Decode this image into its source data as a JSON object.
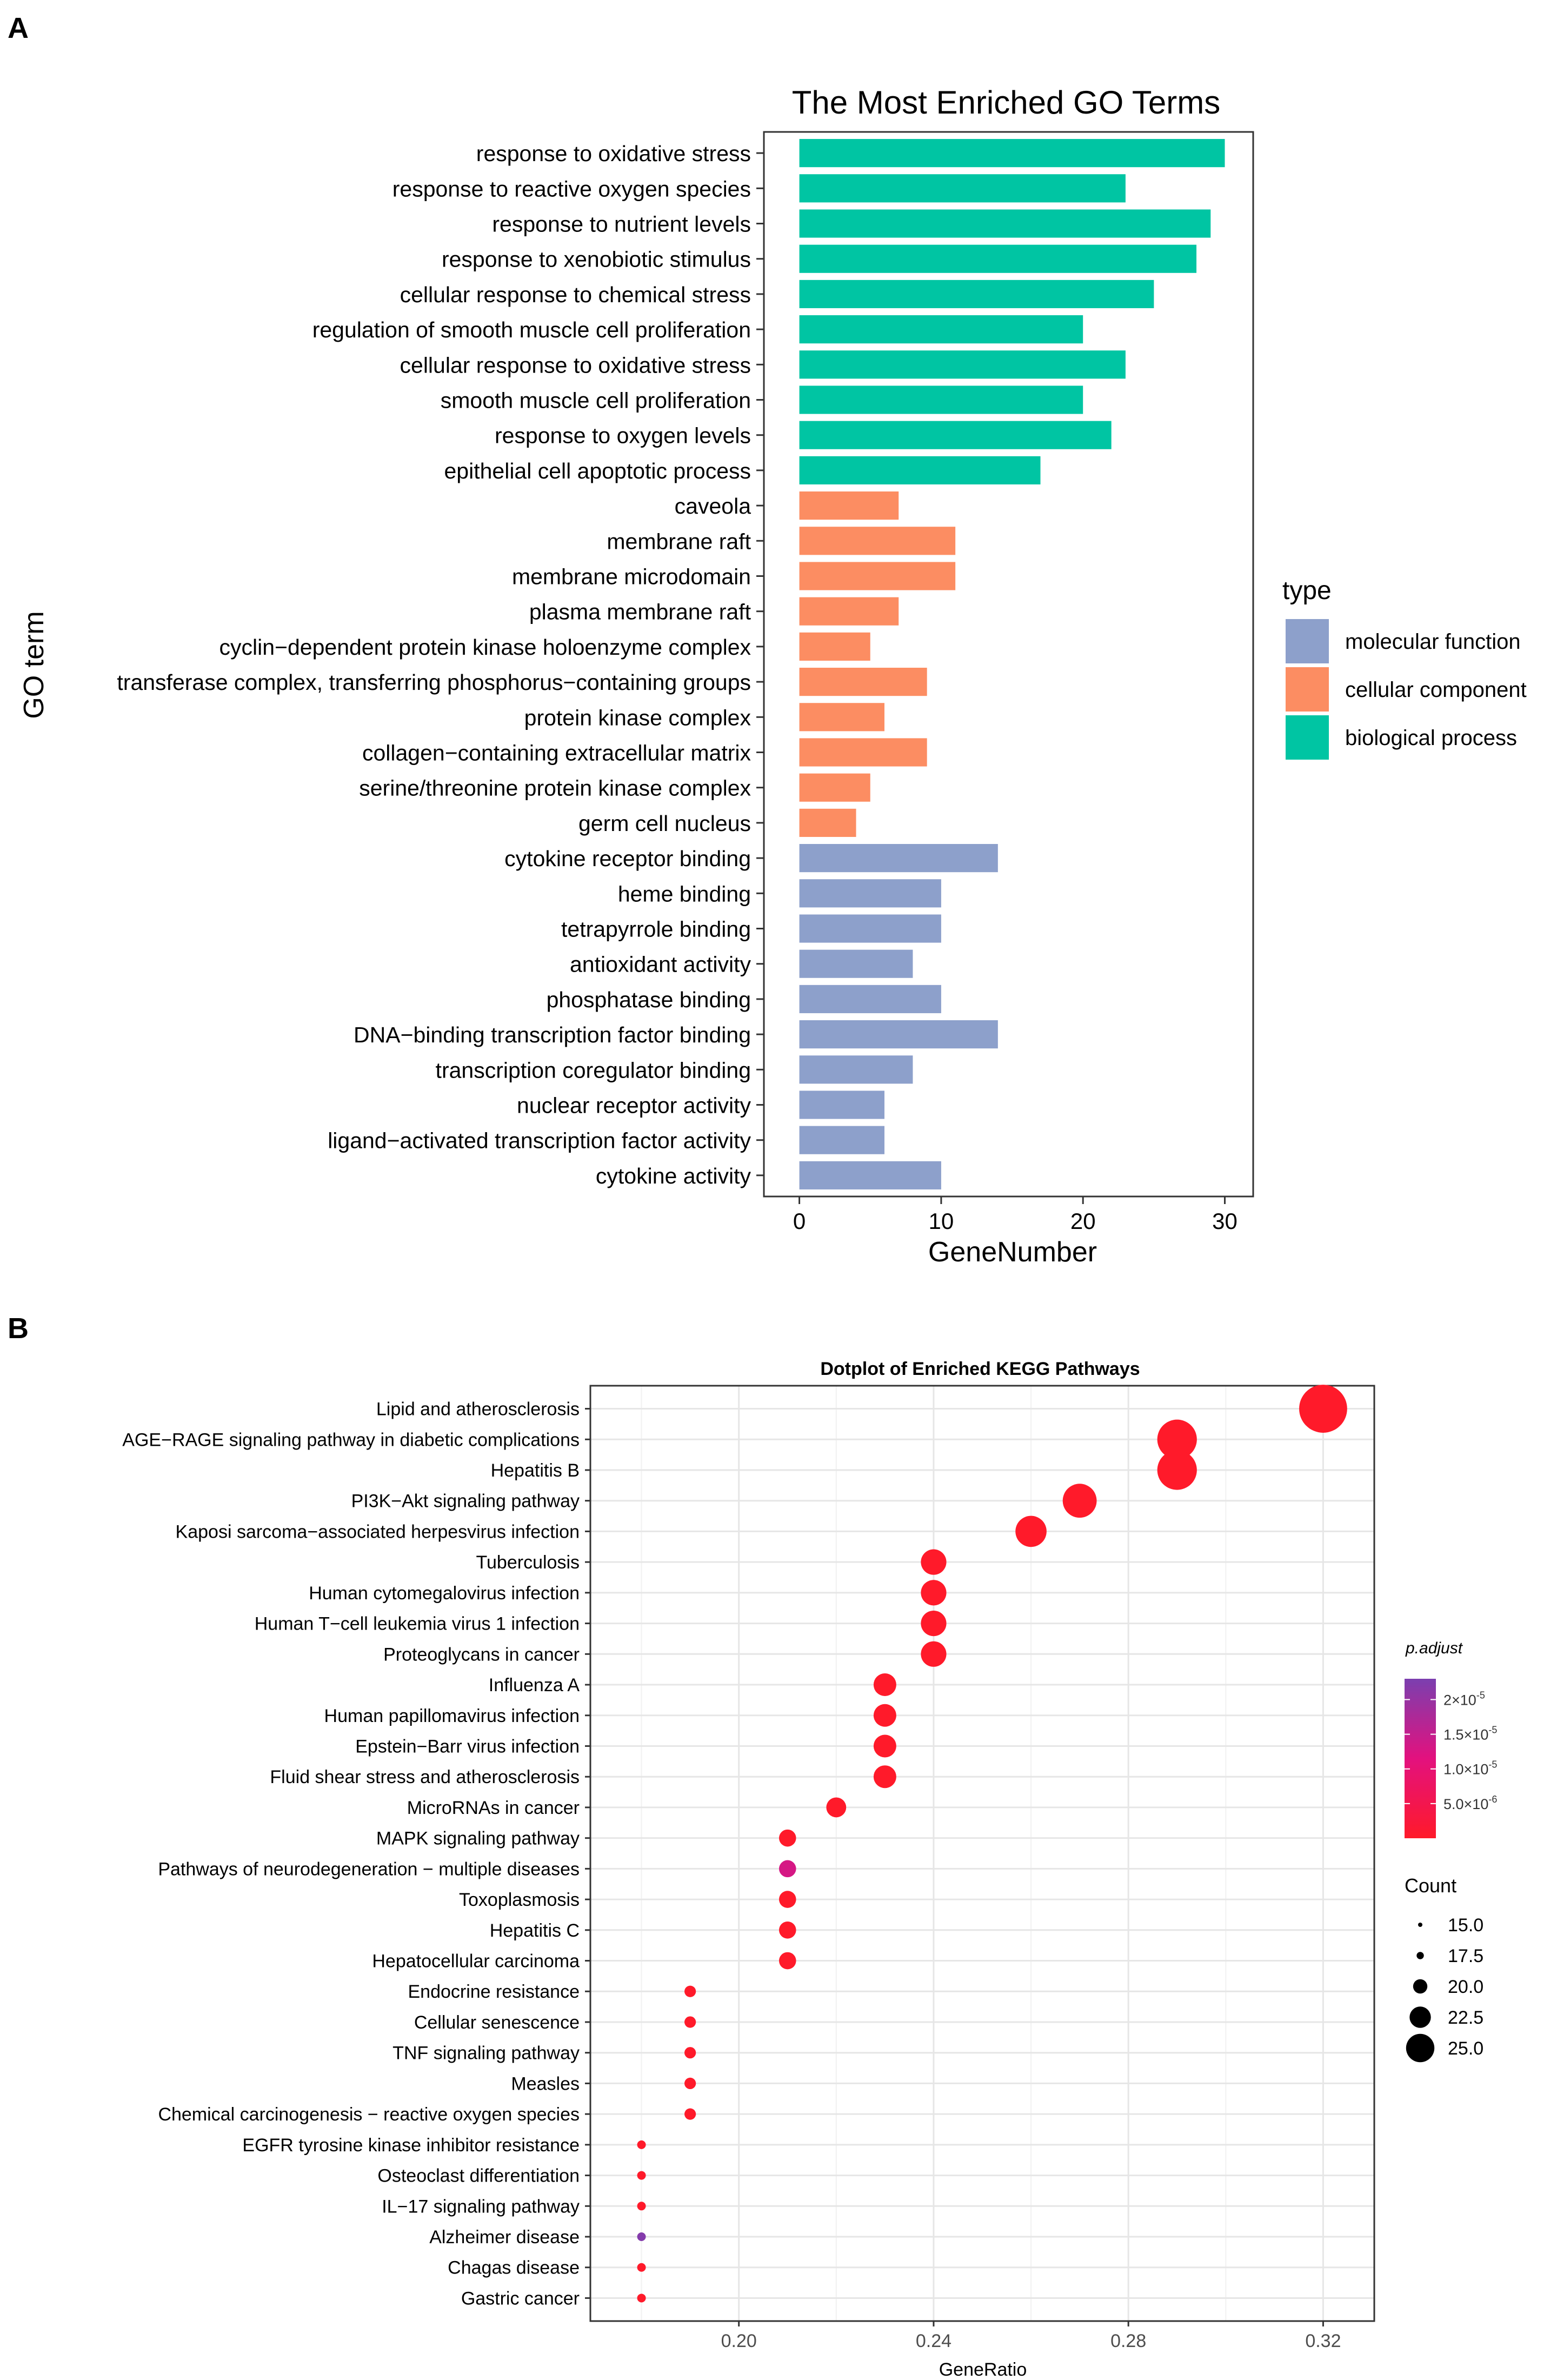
{
  "panel_labels": {
    "a": "A",
    "b": "B"
  },
  "chart_data": [
    {
      "type": "bar",
      "orientation": "horizontal",
      "title": "The Most Enriched GO Terms",
      "xlabel": "GeneNumber",
      "ylabel": "GO term",
      "xlim": [
        -2.5,
        32
      ],
      "xticks": [
        0,
        10,
        20,
        30
      ],
      "grid": false,
      "legend": {
        "title": "type",
        "placement": "right",
        "entries": [
          {
            "name": "molecular function",
            "color": "#8DA0CB"
          },
          {
            "name": "cellular component",
            "color": "#FC8D62"
          },
          {
            "name": "biological process",
            "color": "#00C5A3"
          }
        ]
      },
      "categories": [
        "response to oxidative stress",
        "response to reactive oxygen species",
        "response to nutrient levels",
        "response to xenobiotic stimulus",
        "cellular response to chemical stress",
        "regulation of smooth muscle cell proliferation",
        "cellular response to oxidative stress",
        "smooth muscle cell proliferation",
        "response to oxygen levels",
        "epithelial cell apoptotic process",
        "caveola",
        "membrane raft",
        "membrane microdomain",
        "plasma membrane raft",
        "cyclin−dependent protein kinase holoenzyme complex",
        "transferase complex, transferring phosphorus−containing groups",
        "protein kinase complex",
        "collagen−containing extracellular matrix",
        "serine/threonine protein kinase complex",
        "germ cell nucleus",
        "cytokine receptor binding",
        "heme binding",
        "tetrapyrrole binding",
        "antioxidant activity",
        "phosphatase binding",
        "DNA−binding transcription factor binding",
        "transcription coregulator binding",
        "nuclear receptor activity",
        "ligand−activated transcription factor activity",
        "cytokine activity"
      ],
      "values": [
        30,
        23,
        29,
        28,
        25,
        20,
        23,
        20,
        22,
        17,
        7,
        11,
        11,
        7,
        5,
        9,
        6,
        9,
        5,
        4,
        14,
        10,
        10,
        8,
        10,
        14,
        8,
        6,
        6,
        10
      ],
      "types": [
        "biological process",
        "biological process",
        "biological process",
        "biological process",
        "biological process",
        "biological process",
        "biological process",
        "biological process",
        "biological process",
        "biological process",
        "cellular component",
        "cellular component",
        "cellular component",
        "cellular component",
        "cellular component",
        "cellular component",
        "cellular component",
        "cellular component",
        "cellular component",
        "cellular component",
        "molecular function",
        "molecular function",
        "molecular function",
        "molecular function",
        "molecular function",
        "molecular function",
        "molecular function",
        "molecular function",
        "molecular function",
        "molecular function"
      ]
    },
    {
      "type": "scatter",
      "title": "Dotplot of Enriched KEGG Pathways",
      "xlabel": "GeneRatio",
      "ylabel": "",
      "xlim": [
        0.1695,
        0.3305
      ],
      "xticks": [
        0.2,
        0.24,
        0.28,
        0.32
      ],
      "xtick_labels": [
        "0.20",
        "0.24",
        "0.28",
        "0.32"
      ],
      "grid": true,
      "categories": [
        "Lipid and atherosclerosis",
        "AGE−RAGE signaling pathway in diabetic complications",
        "Hepatitis B",
        "PI3K−Akt signaling pathway",
        "Kaposi sarcoma−associated herpesvirus infection",
        "Tuberculosis",
        "Human cytomegalovirus infection",
        "Human T−cell leukemia virus 1 infection",
        "Proteoglycans in cancer",
        "Influenza A",
        "Human papillomavirus infection",
        "Epstein−Barr virus infection",
        "Fluid shear stress and atherosclerosis",
        "MicroRNAs in cancer",
        "MAPK signaling pathway",
        "Pathways of neurodegeneration − multiple diseases",
        "Toxoplasmosis",
        "Hepatitis C",
        "Hepatocellular carcinoma",
        "Endocrine resistance",
        "Cellular senescence",
        "TNF signaling pathway",
        "Measles",
        "Chemical carcinogenesis − reactive oxygen species",
        "EGFR tyrosine kinase inhibitor resistance",
        "Osteoclast differentiation",
        "IL−17 signaling pathway",
        "Alzheimer disease",
        "Chagas disease",
        "Gastric cancer"
      ],
      "gene_ratio": [
        0.32,
        0.29,
        0.29,
        0.27,
        0.26,
        0.24,
        0.24,
        0.24,
        0.24,
        0.23,
        0.23,
        0.23,
        0.23,
        0.22,
        0.21,
        0.21,
        0.21,
        0.21,
        0.21,
        0.19,
        0.19,
        0.19,
        0.19,
        0.19,
        0.18,
        0.18,
        0.18,
        0.18,
        0.18,
        0.18
      ],
      "count": [
        32,
        29,
        29,
        27,
        26,
        24,
        24,
        24,
        24,
        23,
        23,
        23,
        23,
        22,
        21,
        21,
        21,
        21,
        21,
        19,
        19,
        19,
        19,
        19,
        18,
        18,
        18,
        18,
        18,
        18
      ],
      "p_adjust": [
        1e-08,
        1e-08,
        1e-08,
        1e-08,
        1e-08,
        1e-08,
        1e-08,
        1e-08,
        1e-08,
        1e-08,
        1e-08,
        1e-08,
        1e-08,
        1e-08,
        1e-08,
        1.3e-05,
        1e-08,
        1e-08,
        1e-08,
        1e-08,
        1e-08,
        1e-08,
        1e-08,
        1e-08,
        1e-08,
        1e-08,
        1e-08,
        2.2e-05,
        1e-08,
        1e-08
      ],
      "color_legend": {
        "title": "p.adjust",
        "low_color": "#FF1A2A",
        "mid_color": "#E3117E",
        "high_color": "#7B3FAF",
        "range": [
          0,
          2.3e-05
        ],
        "ticks": [
          {
            "value": 2e-05,
            "base": "2×10",
            "exp": "-5"
          },
          {
            "value": 1.5e-05,
            "base": "1.5×10",
            "exp": "-5"
          },
          {
            "value": 1e-05,
            "base": "1.0×10",
            "exp": "-5"
          },
          {
            "value": 5e-06,
            "base": "5.0×10",
            "exp": "-6"
          }
        ]
      },
      "size_legend": {
        "title": "Count",
        "entries": [
          {
            "label": "15.0",
            "value": 15
          },
          {
            "label": "17.5",
            "value": 17.5
          },
          {
            "label": "20.0",
            "value": 20
          },
          {
            "label": "22.5",
            "value": 22.5
          },
          {
            "label": "25.0",
            "value": 25
          }
        ]
      }
    }
  ]
}
